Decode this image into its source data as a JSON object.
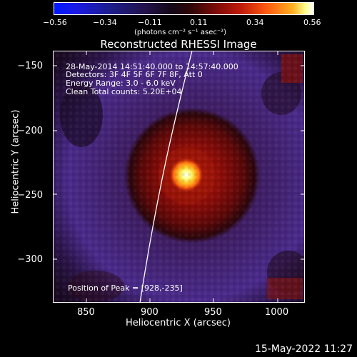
{
  "colorbar": {
    "ticks": [
      "−0.56",
      "−0.34",
      "−0.11",
      "0.11",
      "0.34",
      "0.56"
    ],
    "unit": "(photons cm⁻² s⁻¹ asec⁻²)"
  },
  "title": "Reconstructed RHESSI Image",
  "info": {
    "line1": "28-May-2014 14:51:40.000 to 14:57:40.000",
    "line2": "Detectors: 3F 4F 5F 6F 7F 8F, Att 0",
    "line3": "Energy Range: 3.0 - 6.0 keV",
    "line4": "Clean    Total counts: 5.20E+04",
    "peak": "Position of Peak = [928,-235]"
  },
  "axes": {
    "xlabel": "Heliocentric X (arcsec)",
    "ylabel": "Heliocentric Y (arcsec)",
    "xticks": [
      "850",
      "900",
      "950",
      "1000"
    ],
    "yticks": [
      "−150",
      "−200",
      "−250",
      "−300"
    ]
  },
  "footer": "15-May-2022 11:27",
  "colors": {
    "background": "#000000",
    "halo": "#4a2a8a",
    "core": "#ffffff"
  }
}
